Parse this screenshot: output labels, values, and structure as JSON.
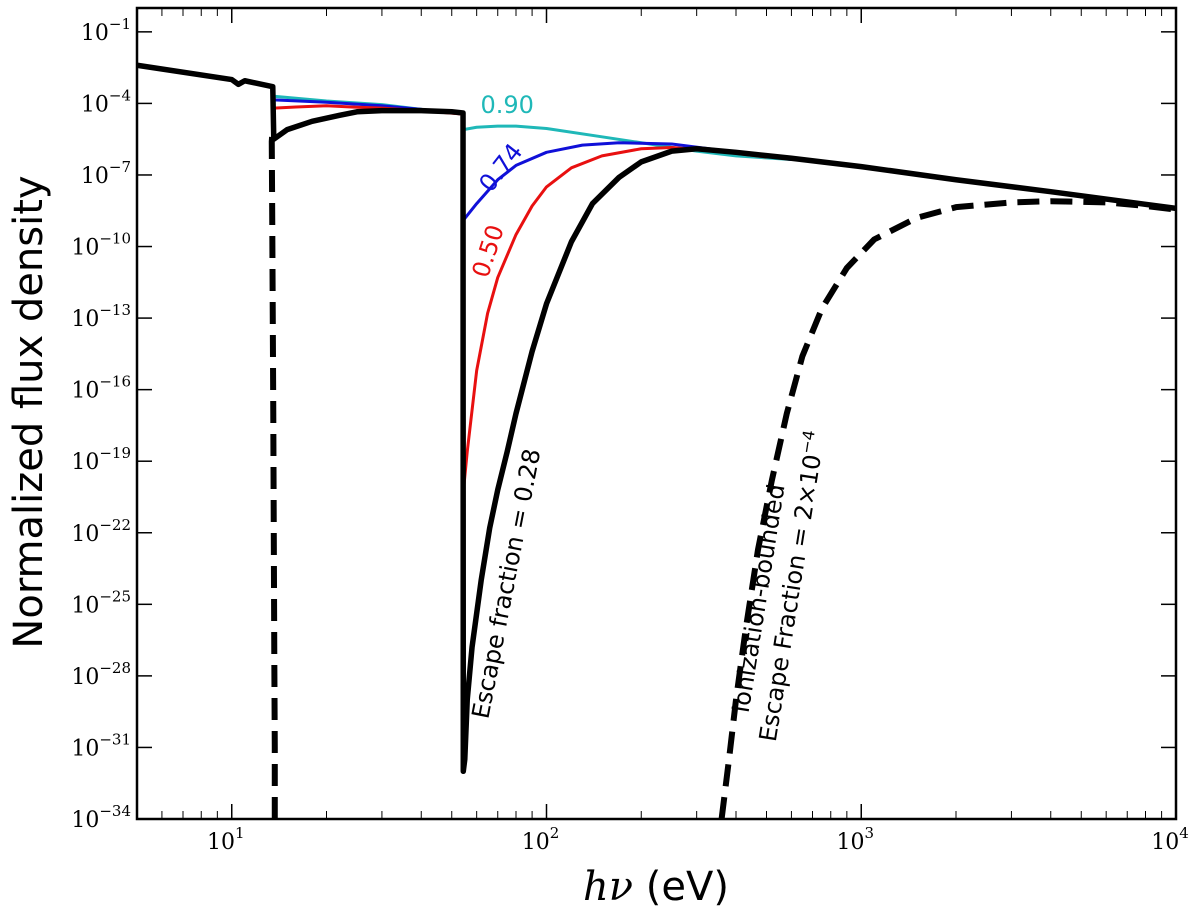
{
  "chart_data": {
    "type": "line",
    "xscale": "log",
    "yscale": "log",
    "xlim": [
      5,
      10000
    ],
    "ylim": [
      1e-34,
      1
    ],
    "x_ticks": [
      {
        "value": 10,
        "base": "10",
        "exp": "1"
      },
      {
        "value": 100,
        "base": "10",
        "exp": "2"
      },
      {
        "value": 1000,
        "base": "10",
        "exp": "3"
      },
      {
        "value": 10000,
        "base": "10",
        "exp": "4"
      }
    ],
    "y_ticks": [
      {
        "value": -1,
        "base": "10",
        "exp": "−1"
      },
      {
        "value": -4,
        "base": "10",
        "exp": "−4"
      },
      {
        "value": -7,
        "base": "10",
        "exp": "−7"
      },
      {
        "value": -10,
        "base": "10",
        "exp": "−10"
      },
      {
        "value": -13,
        "base": "10",
        "exp": "−13"
      },
      {
        "value": -16,
        "base": "10",
        "exp": "−16"
      },
      {
        "value": -19,
        "base": "10",
        "exp": "−19"
      },
      {
        "value": -22,
        "base": "10",
        "exp": "−22"
      },
      {
        "value": -25,
        "base": "10",
        "exp": "−25"
      },
      {
        "value": -28,
        "base": "10",
        "exp": "−28"
      },
      {
        "value": -31,
        "base": "10",
        "exp": "−31"
      },
      {
        "value": -34,
        "base": "10",
        "exp": "−34"
      }
    ],
    "xlabel": {
      "math": "hν",
      "unit": " (eV)"
    },
    "ylabel": "Normalized flux density",
    "colors": {
      "cyan": "#1fb8b8",
      "blue": "#1010d8",
      "red": "#e81010",
      "black": "#000000"
    },
    "series": [
      {
        "name": "escape fraction 0.90",
        "label": "0.90",
        "color": "#1fb8b8",
        "style": "solid",
        "points": [
          [
            13.6,
            -3.7
          ],
          [
            20,
            -3.9
          ],
          [
            30,
            -4.05
          ],
          [
            40,
            -4.25
          ],
          [
            54.4,
            -4.45
          ],
          [
            54.4,
            -5.1
          ],
          [
            60,
            -5.0
          ],
          [
            70,
            -4.95
          ],
          [
            80,
            -4.95
          ],
          [
            100,
            -5.05
          ],
          [
            150,
            -5.4
          ],
          [
            200,
            -5.65
          ],
          [
            300,
            -6.0
          ],
          [
            400,
            -6.2
          ],
          [
            600,
            -6.35
          ]
        ]
      },
      {
        "name": "escape fraction 0.74",
        "label": "0.74",
        "color": "#1010d8",
        "style": "solid",
        "points": [
          [
            13.6,
            -3.85
          ],
          [
            20,
            -3.95
          ],
          [
            30,
            -4.1
          ],
          [
            40,
            -4.25
          ],
          [
            54.4,
            -4.45
          ],
          [
            54.4,
            -8.9
          ],
          [
            60,
            -8.2
          ],
          [
            70,
            -7.2
          ],
          [
            80,
            -6.6
          ],
          [
            100,
            -6.05
          ],
          [
            130,
            -5.75
          ],
          [
            170,
            -5.65
          ],
          [
            250,
            -5.7
          ],
          [
            350,
            -5.95
          ],
          [
            500,
            -6.2
          ],
          [
            600,
            -6.35
          ]
        ]
      },
      {
        "name": "escape fraction 0.50",
        "label": "0.50",
        "color": "#e81010",
        "style": "solid",
        "points": [
          [
            13.6,
            -4.2
          ],
          [
            16,
            -4.15
          ],
          [
            20,
            -4.1
          ],
          [
            24,
            -4.15
          ],
          [
            30,
            -4.2
          ],
          [
            40,
            -4.3
          ],
          [
            54.4,
            -4.45
          ],
          [
            54.4,
            -20.3
          ],
          [
            56,
            -18.6
          ],
          [
            60,
            -15.2
          ],
          [
            65,
            -12.8
          ],
          [
            70,
            -11.3
          ],
          [
            80,
            -9.5
          ],
          [
            90,
            -8.3
          ],
          [
            100,
            -7.5
          ],
          [
            120,
            -6.7
          ],
          [
            150,
            -6.2
          ],
          [
            200,
            -5.9
          ],
          [
            250,
            -5.85
          ],
          [
            350,
            -6.0
          ],
          [
            500,
            -6.25
          ]
        ]
      },
      {
        "name": "escape fraction 0.28",
        "label": "Escape fraction = 0.28",
        "color": "#000000",
        "style": "solid",
        "points": [
          [
            5,
            -2.4
          ],
          [
            10,
            -3.0
          ],
          [
            10.5,
            -3.2
          ],
          [
            11,
            -3.05
          ],
          [
            13.5,
            -3.3
          ],
          [
            13.6,
            -5.5
          ],
          [
            15,
            -5.1
          ],
          [
            18,
            -4.75
          ],
          [
            22,
            -4.5
          ],
          [
            25,
            -4.35
          ],
          [
            30,
            -4.3
          ],
          [
            40,
            -4.3
          ],
          [
            50,
            -4.35
          ],
          [
            54.3,
            -4.4
          ],
          [
            54.4,
            -32.0
          ],
          [
            55,
            -31.5
          ],
          [
            56,
            -29.0
          ],
          [
            58,
            -26.8
          ],
          [
            62,
            -24.0
          ],
          [
            66,
            -21.8
          ],
          [
            70,
            -20.2
          ],
          [
            75,
            -18.6
          ],
          [
            80,
            -17.0
          ],
          [
            90,
            -14.4
          ],
          [
            100,
            -12.4
          ],
          [
            120,
            -9.8
          ],
          [
            140,
            -8.2
          ],
          [
            170,
            -7.1
          ],
          [
            200,
            -6.45
          ],
          [
            250,
            -6.0
          ],
          [
            300,
            -5.9
          ],
          [
            400,
            -6.05
          ],
          [
            600,
            -6.3
          ],
          [
            1000,
            -6.65
          ],
          [
            2000,
            -7.2
          ],
          [
            4000,
            -7.7
          ],
          [
            10000,
            -8.4
          ]
        ]
      },
      {
        "name": "ionization-bounded escape fraction 2e-4",
        "label": "Ionization-bounded Escape Fraction = 2×10−4",
        "color": "#000000",
        "style": "dashed",
        "points": [
          [
            13.7,
            -34
          ],
          [
            13.7,
            -31.0
          ],
          [
            13.65,
            -27.0
          ],
          [
            13.6,
            -22.0
          ],
          [
            13.55,
            -17.0
          ],
          [
            13.5,
            -13.0
          ],
          [
            13.45,
            -9.0
          ],
          [
            13.4,
            -5.6
          ],
          [
            13.5,
            -5.0
          ]
        ]
      },
      {
        "name": "ionization-bounded escape fraction 2e-4 (high energy)",
        "label": "",
        "color": "#000000",
        "style": "dashed",
        "points": [
          [
            360,
            -34
          ],
          [
            380,
            -31.5
          ],
          [
            400,
            -29.0
          ],
          [
            430,
            -26.0
          ],
          [
            470,
            -22.7
          ],
          [
            520,
            -19.8
          ],
          [
            580,
            -17.0
          ],
          [
            650,
            -14.6
          ],
          [
            750,
            -12.6
          ],
          [
            900,
            -10.9
          ],
          [
            1100,
            -9.7
          ],
          [
            1500,
            -8.8
          ],
          [
            2000,
            -8.35
          ],
          [
            3000,
            -8.15
          ],
          [
            4000,
            -8.1
          ],
          [
            6000,
            -8.15
          ],
          [
            8000,
            -8.3
          ],
          [
            10000,
            -8.45
          ]
        ]
      }
    ],
    "annotations": [
      {
        "text": "0.90",
        "color": "#1fb8b8",
        "x": 75,
        "y": -4.4,
        "rotate": 0
      },
      {
        "text": "0.74",
        "color": "#1010d8",
        "x": 75,
        "y": -6.9,
        "rotate": -52
      },
      {
        "text": "0.50",
        "color": "#e81010",
        "x": 69,
        "y": -10.3,
        "rotate": -72
      },
      {
        "text": "Escape fraction = 0.28",
        "color": "#000000",
        "x": 79,
        "y": -24.2,
        "rotate": -79
      },
      {
        "text": "Ionization-bounded",
        "color": "#000000",
        "x": 500,
        "y": -24.8,
        "rotate": -81
      },
      {
        "text": "Escape Fraction = 2×10",
        "sup": "−4",
        "color": "#000000",
        "x": 640,
        "y": -24.3,
        "rotate": -81
      }
    ]
  }
}
